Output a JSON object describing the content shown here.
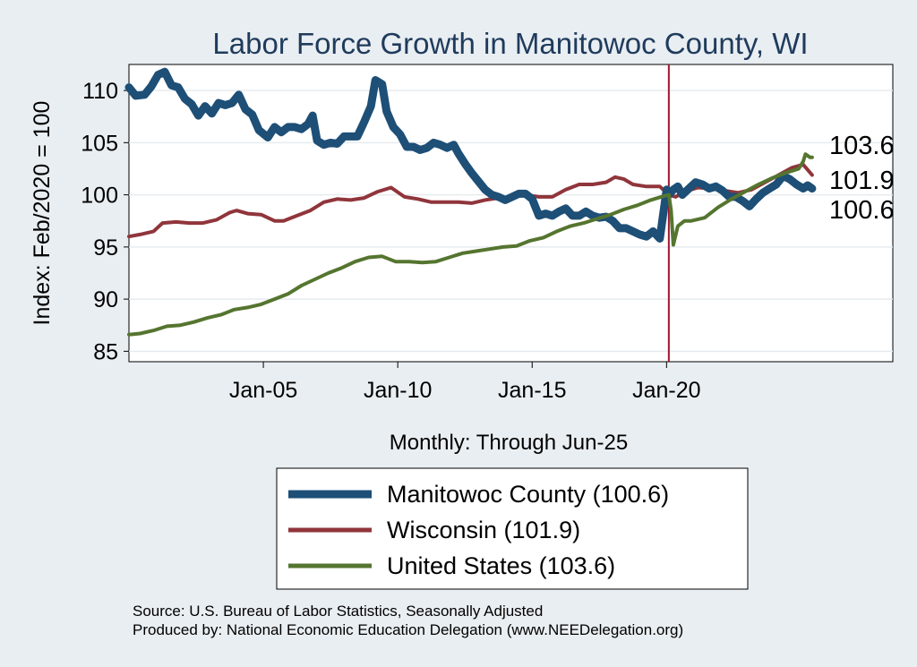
{
  "colors": {
    "background": "#e9eef2",
    "plot_background": "#ffffff",
    "gridline": "#e6ebef",
    "title": "#1f3b5c",
    "manitowoc": "#1d4f77",
    "wisconsin": "#90353b",
    "united_states": "#55752f",
    "reference_line": "#a0152c"
  },
  "chart_data": {
    "type": "line",
    "title": "Labor Force Growth in Manitowoc  County, WI",
    "xlabel": "Monthly: Through Jun-25",
    "ylabel": "Index: Feb/2020 = 100",
    "xlim": [
      "2000-01",
      "2028-06"
    ],
    "ylim": [
      84,
      112.5
    ],
    "yticks": [
      85,
      90,
      95,
      100,
      105,
      110
    ],
    "xticks": [
      {
        "date": "2005-01",
        "label": "Jan-05"
      },
      {
        "date": "2010-01",
        "label": "Jan-10"
      },
      {
        "date": "2015-01",
        "label": "Jan-15"
      },
      {
        "date": "2020-01",
        "label": "Jan-20"
      }
    ],
    "reference_line": {
      "date": "2020-02"
    },
    "grid": true,
    "series": [
      {
        "key": "manitowoc",
        "name": "Manitowoc  County (100.6)",
        "end_label": "100.6",
        "points": [
          [
            "2000-01",
            110.3
          ],
          [
            "2000-04",
            109.5
          ],
          [
            "2000-08",
            109.6
          ],
          [
            "2000-11",
            110.4
          ],
          [
            "2001-02",
            111.5
          ],
          [
            "2001-05",
            111.8
          ],
          [
            "2001-08",
            110.5
          ],
          [
            "2001-11",
            110.3
          ],
          [
            "2002-02",
            109.2
          ],
          [
            "2002-05",
            108.7
          ],
          [
            "2002-08",
            107.6
          ],
          [
            "2002-11",
            108.5
          ],
          [
            "2003-02",
            107.8
          ],
          [
            "2003-05",
            108.8
          ],
          [
            "2003-08",
            108.6
          ],
          [
            "2003-11",
            108.8
          ],
          [
            "2004-02",
            109.6
          ],
          [
            "2004-05",
            108.2
          ],
          [
            "2004-08",
            107.7
          ],
          [
            "2004-11",
            106.2
          ],
          [
            "2005-03",
            105.5
          ],
          [
            "2005-06",
            106.5
          ],
          [
            "2005-09",
            106.0
          ],
          [
            "2005-12",
            106.5
          ],
          [
            "2006-03",
            106.5
          ],
          [
            "2006-06",
            106.3
          ],
          [
            "2006-09",
            106.8
          ],
          [
            "2006-11",
            107.6
          ],
          [
            "2007-01",
            105.2
          ],
          [
            "2007-04",
            104.8
          ],
          [
            "2007-07",
            105.0
          ],
          [
            "2007-10",
            104.9
          ],
          [
            "2008-01",
            105.6
          ],
          [
            "2008-04",
            105.6
          ],
          [
            "2008-07",
            105.6
          ],
          [
            "2008-10",
            107.0
          ],
          [
            "2009-01",
            108.5
          ],
          [
            "2009-03",
            111.0
          ],
          [
            "2009-06",
            110.6
          ],
          [
            "2009-08",
            108.0
          ],
          [
            "2009-11",
            106.5
          ],
          [
            "2010-02",
            105.8
          ],
          [
            "2010-05",
            104.6
          ],
          [
            "2010-08",
            104.6
          ],
          [
            "2010-11",
            104.3
          ],
          [
            "2011-02",
            104.5
          ],
          [
            "2011-05",
            105.0
          ],
          [
            "2011-08",
            104.8
          ],
          [
            "2011-11",
            104.5
          ],
          [
            "2012-02",
            104.8
          ],
          [
            "2012-04",
            104.0
          ],
          [
            "2012-07",
            103.0
          ],
          [
            "2012-10",
            102.1
          ],
          [
            "2013-01",
            101.3
          ],
          [
            "2013-04",
            100.5
          ],
          [
            "2013-07",
            100.0
          ],
          [
            "2013-10",
            99.8
          ],
          [
            "2014-01",
            99.5
          ],
          [
            "2014-04",
            99.8
          ],
          [
            "2014-07",
            100.1
          ],
          [
            "2014-10",
            100.1
          ],
          [
            "2015-01",
            99.6
          ],
          [
            "2015-04",
            98.0
          ],
          [
            "2015-07",
            98.2
          ],
          [
            "2015-10",
            98.0
          ],
          [
            "2016-01",
            98.4
          ],
          [
            "2016-04",
            98.7
          ],
          [
            "2016-07",
            98.0
          ],
          [
            "2016-10",
            98.0
          ],
          [
            "2017-01",
            98.4
          ],
          [
            "2017-04",
            98.0
          ],
          [
            "2017-07",
            97.8
          ],
          [
            "2017-10",
            97.9
          ],
          [
            "2018-01",
            97.5
          ],
          [
            "2018-04",
            96.8
          ],
          [
            "2018-07",
            96.8
          ],
          [
            "2018-10",
            96.5
          ],
          [
            "2019-01",
            96.2
          ],
          [
            "2019-04",
            96.0
          ],
          [
            "2019-07",
            96.5
          ],
          [
            "2019-10",
            95.8
          ],
          [
            "2020-01",
            100.5
          ],
          [
            "2020-02",
            100.0
          ],
          [
            "2020-04",
            100.5
          ],
          [
            "2020-06",
            100.8
          ],
          [
            "2020-08",
            100.0
          ],
          [
            "2020-11",
            100.6
          ],
          [
            "2021-02",
            101.2
          ],
          [
            "2021-05",
            101.0
          ],
          [
            "2021-08",
            100.6
          ],
          [
            "2021-11",
            100.8
          ],
          [
            "2022-02",
            100.4
          ],
          [
            "2022-05",
            99.8
          ],
          [
            "2022-08",
            99.8
          ],
          [
            "2022-11",
            99.4
          ],
          [
            "2023-02",
            98.9
          ],
          [
            "2023-05",
            99.6
          ],
          [
            "2023-08",
            100.2
          ],
          [
            "2023-11",
            100.6
          ],
          [
            "2024-02",
            101.0
          ],
          [
            "2024-05",
            101.8
          ],
          [
            "2024-08",
            101.5
          ],
          [
            "2024-11",
            101.0
          ],
          [
            "2025-02",
            100.6
          ],
          [
            "2025-04",
            100.9
          ],
          [
            "2025-06",
            100.6
          ]
        ]
      },
      {
        "key": "wisconsin",
        "name": "Wisconsin (101.9)",
        "end_label": "101.9",
        "points": [
          [
            "2000-01",
            96.0
          ],
          [
            "2000-06",
            96.2
          ],
          [
            "2000-12",
            96.5
          ],
          [
            "2001-04",
            97.3
          ],
          [
            "2001-10",
            97.4
          ],
          [
            "2002-04",
            97.3
          ],
          [
            "2002-10",
            97.3
          ],
          [
            "2003-04",
            97.6
          ],
          [
            "2003-10",
            98.3
          ],
          [
            "2004-01",
            98.5
          ],
          [
            "2004-06",
            98.2
          ],
          [
            "2004-12",
            98.1
          ],
          [
            "2005-06",
            97.5
          ],
          [
            "2005-10",
            97.5
          ],
          [
            "2006-04",
            98.0
          ],
          [
            "2006-10",
            98.5
          ],
          [
            "2007-04",
            99.3
          ],
          [
            "2007-10",
            99.6
          ],
          [
            "2008-04",
            99.5
          ],
          [
            "2008-10",
            99.7
          ],
          [
            "2009-04",
            100.3
          ],
          [
            "2009-10",
            100.7
          ],
          [
            "2010-04",
            99.8
          ],
          [
            "2010-10",
            99.6
          ],
          [
            "2011-04",
            99.3
          ],
          [
            "2011-10",
            99.3
          ],
          [
            "2012-04",
            99.3
          ],
          [
            "2012-10",
            99.2
          ],
          [
            "2013-04",
            99.5
          ],
          [
            "2013-10",
            99.7
          ],
          [
            "2014-04",
            99.8
          ],
          [
            "2014-10",
            100.0
          ],
          [
            "2015-04",
            99.8
          ],
          [
            "2015-10",
            99.8
          ],
          [
            "2016-04",
            100.5
          ],
          [
            "2016-10",
            101.0
          ],
          [
            "2017-04",
            101.0
          ],
          [
            "2017-10",
            101.2
          ],
          [
            "2018-02",
            101.7
          ],
          [
            "2018-06",
            101.5
          ],
          [
            "2018-10",
            101.0
          ],
          [
            "2019-04",
            100.8
          ],
          [
            "2019-10",
            100.8
          ],
          [
            "2020-02",
            100.0
          ],
          [
            "2020-05",
            99.8
          ],
          [
            "2020-09",
            100.3
          ],
          [
            "2021-03",
            100.7
          ],
          [
            "2021-09",
            100.6
          ],
          [
            "2022-03",
            100.4
          ],
          [
            "2022-09",
            100.2
          ],
          [
            "2023-03",
            100.5
          ],
          [
            "2023-09",
            101.2
          ],
          [
            "2024-03",
            101.9
          ],
          [
            "2024-09",
            102.6
          ],
          [
            "2025-02",
            102.9
          ],
          [
            "2025-06",
            101.9
          ]
        ]
      },
      {
        "key": "united_states",
        "name": "United States (103.6)",
        "end_label": "103.6",
        "points": [
          [
            "2000-01",
            86.6
          ],
          [
            "2000-06",
            86.7
          ],
          [
            "2000-12",
            87.0
          ],
          [
            "2001-06",
            87.4
          ],
          [
            "2001-12",
            87.5
          ],
          [
            "2002-06",
            87.8
          ],
          [
            "2002-12",
            88.2
          ],
          [
            "2003-06",
            88.5
          ],
          [
            "2003-12",
            89.0
          ],
          [
            "2004-06",
            89.2
          ],
          [
            "2004-12",
            89.5
          ],
          [
            "2005-06",
            90.0
          ],
          [
            "2005-12",
            90.5
          ],
          [
            "2006-06",
            91.3
          ],
          [
            "2006-12",
            91.9
          ],
          [
            "2007-06",
            92.5
          ],
          [
            "2007-12",
            93.0
          ],
          [
            "2008-06",
            93.6
          ],
          [
            "2008-12",
            94.0
          ],
          [
            "2009-06",
            94.1
          ],
          [
            "2009-12",
            93.6
          ],
          [
            "2010-06",
            93.6
          ],
          [
            "2010-12",
            93.5
          ],
          [
            "2011-06",
            93.6
          ],
          [
            "2011-12",
            94.0
          ],
          [
            "2012-06",
            94.4
          ],
          [
            "2012-12",
            94.6
          ],
          [
            "2013-06",
            94.8
          ],
          [
            "2013-12",
            95.0
          ],
          [
            "2014-06",
            95.1
          ],
          [
            "2014-12",
            95.6
          ],
          [
            "2015-06",
            95.9
          ],
          [
            "2015-12",
            96.5
          ],
          [
            "2016-06",
            97.0
          ],
          [
            "2016-12",
            97.3
          ],
          [
            "2017-06",
            97.7
          ],
          [
            "2017-12",
            98.1
          ],
          [
            "2018-06",
            98.6
          ],
          [
            "2018-12",
            99.0
          ],
          [
            "2019-06",
            99.5
          ],
          [
            "2019-12",
            99.9
          ],
          [
            "2020-02",
            100.0
          ],
          [
            "2020-03",
            98.5
          ],
          [
            "2020-04",
            95.2
          ],
          [
            "2020-06",
            97.0
          ],
          [
            "2020-09",
            97.5
          ],
          [
            "2020-12",
            97.5
          ],
          [
            "2021-06",
            97.8
          ],
          [
            "2021-12",
            98.8
          ],
          [
            "2022-06",
            99.6
          ],
          [
            "2022-12",
            100.3
          ],
          [
            "2023-06",
            101.0
          ],
          [
            "2023-12",
            101.6
          ],
          [
            "2024-06",
            102.1
          ],
          [
            "2024-12",
            102.5
          ],
          [
            "2025-02",
            103.2
          ],
          [
            "2025-03",
            103.9
          ],
          [
            "2025-05",
            103.6
          ],
          [
            "2025-06",
            103.6
          ]
        ]
      }
    ]
  },
  "legend": {
    "items": [
      {
        "label": "Manitowoc  County (100.6)",
        "color_key": "manitowoc"
      },
      {
        "label": "Wisconsin (101.9)",
        "color_key": "wisconsin"
      },
      {
        "label": "United States (103.6)",
        "color_key": "united_states"
      }
    ]
  },
  "footer": {
    "source": "Source: U.S. Bureau of Labor Statistics, Seasonally Adjusted",
    "produced": "Produced by: National Economic Education Delegation (www.NEEDelegation.org)"
  }
}
